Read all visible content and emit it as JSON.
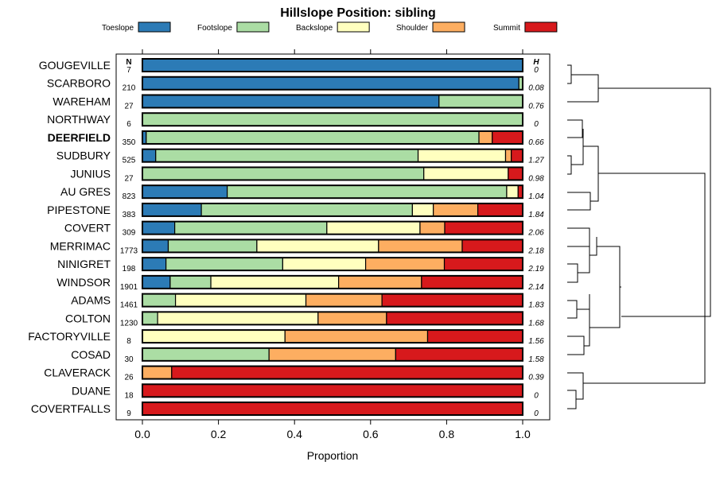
{
  "chart_data": {
    "type": "bar",
    "stacked": true,
    "orientation": "horizontal",
    "title": "Hillslope Position: sibling",
    "xlabel": "Proportion",
    "xlim": [
      0,
      1
    ],
    "xticks": [
      "0.0",
      "0.2",
      "0.4",
      "0.6",
      "0.8",
      "1.0"
    ],
    "n_header": "N",
    "h_header": "H",
    "highlight": "DEERFIELD",
    "legend": [
      {
        "name": "Toeslope",
        "color": "#2c7bb6"
      },
      {
        "name": "Footslope",
        "color": "#abdda4"
      },
      {
        "name": "Backslope",
        "color": "#ffffbf"
      },
      {
        "name": "Shoulder",
        "color": "#fdae61"
      },
      {
        "name": "Summit",
        "color": "#d7191c"
      }
    ],
    "categories": [
      "GOUGEVILLE",
      "SCARBORO",
      "WAREHAM",
      "NORTHWAY",
      "DEERFIELD",
      "SUDBURY",
      "JUNIUS",
      "AU GRES",
      "PIPESTONE",
      "COVERT",
      "MERRIMAC",
      "NINIGRET",
      "WINDSOR",
      "ADAMS",
      "COLTON",
      "FACTORYVILLE",
      "COSAD",
      "CLAVERACK",
      "DUANE",
      "COVERTFALLS"
    ],
    "n": [
      "7",
      "210",
      "27",
      "6",
      "350",
      "525",
      "27",
      "823",
      "383",
      "309",
      "1773",
      "198",
      "1901",
      "1461",
      "1230",
      "8",
      "30",
      "26",
      "18",
      "9"
    ],
    "h": [
      "0",
      "0.08",
      "0.76",
      "0",
      "0.66",
      "1.27",
      "0.98",
      "1.04",
      "1.84",
      "2.06",
      "2.18",
      "2.19",
      "2.14",
      "1.83",
      "1.68",
      "1.56",
      "1.58",
      "0.39",
      "0",
      "0"
    ],
    "series": [
      {
        "name": "Toeslope",
        "values": [
          1.0,
          0.99,
          0.78,
          0,
          0.01,
          0.035,
          0,
          0.223,
          0.155,
          0.085,
          0.068,
          0.062,
          0.073,
          0,
          0,
          0,
          0,
          0,
          0,
          0
        ]
      },
      {
        "name": "Footslope",
        "values": [
          0,
          0.01,
          0.22,
          1.0,
          0.875,
          0.69,
          0.74,
          0.735,
          0.555,
          0.4,
          0.233,
          0.307,
          0.107,
          0.087,
          0.04,
          0,
          0.333,
          0,
          0,
          0
        ]
      },
      {
        "name": "Backslope",
        "values": [
          0,
          0,
          0,
          0,
          0,
          0.23,
          0.222,
          0.03,
          0.055,
          0.245,
          0.32,
          0.218,
          0.336,
          0.343,
          0.422,
          0.375,
          0,
          0,
          0,
          0
        ]
      },
      {
        "name": "Shoulder",
        "values": [
          0,
          0,
          0,
          0,
          0.035,
          0.015,
          0,
          0,
          0.117,
          0.065,
          0.22,
          0.207,
          0.218,
          0.2,
          0.18,
          0.375,
          0.333,
          0.077,
          0,
          0
        ]
      },
      {
        "name": "Summit",
        "values": [
          0,
          0,
          0,
          0,
          0.08,
          0.03,
          0.038,
          0.012,
          0.118,
          0.205,
          0.159,
          0.206,
          0.266,
          0.37,
          0.358,
          0.25,
          0.334,
          0.923,
          1.0,
          1.0
        ]
      }
    ]
  }
}
